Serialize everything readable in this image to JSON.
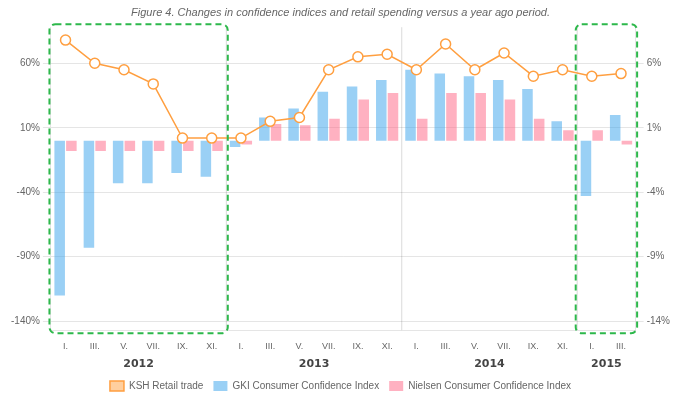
{
  "chart_data": {
    "type": "bar",
    "title": "Figure 4. Changes in confidence indices and retail spending versus a year ago period.",
    "categories": [
      "I.",
      "III.",
      "V.",
      "VII.",
      "IX.",
      "XI.",
      "I.",
      "III.",
      "V.",
      "VII.",
      "IX.",
      "XI.",
      "I.",
      "III.",
      "V.",
      "VII.",
      "IX.",
      "XI.",
      "I.",
      "III."
    ],
    "series": [
      {
        "name": "GKI Consumer Confidence Index",
        "type": "bar",
        "values": [
          -120,
          -83,
          -33,
          -33,
          -25,
          -28,
          -5,
          18,
          25,
          38,
          42,
          47,
          55,
          52,
          50,
          47,
          40,
          15,
          -43,
          20
        ]
      },
      {
        "name": "Nielsen Consumer Confidence Index",
        "type": "bar",
        "values": [
          -8,
          -8,
          -8,
          -8,
          -8,
          -8,
          -3,
          13,
          12,
          17,
          32,
          37,
          17,
          37,
          37,
          32,
          17,
          8,
          8,
          -3
        ]
      },
      {
        "name": "KSH Retail trade",
        "type": "line",
        "axis": "y2",
        "marker": "circle",
        "line_style": "solid",
        "values": [
          7.8,
          6.0,
          5.5,
          4.4,
          0.2,
          0.2,
          0.2,
          1.5,
          1.8,
          5.5,
          6.5,
          6.7,
          5.5,
          7.5,
          5.5,
          6.8,
          5.0,
          5.5,
          5.0,
          5.2
        ]
      }
    ],
    "ylim": [
      -147,
      88
    ],
    "yticks": [
      {
        "value": -140,
        "label": "-140%"
      },
      {
        "value": -90,
        "label": "-90%"
      },
      {
        "value": -40,
        "label": "-40%"
      },
      {
        "value": 10,
        "label": "10%"
      },
      {
        "value": 60,
        "label": "60%"
      }
    ],
    "y2lim": [
      -14.7,
      8.8
    ],
    "y2ticks": [
      {
        "value": -14,
        "label": "-14%"
      },
      {
        "value": -9,
        "label": "-9%"
      },
      {
        "value": -4,
        "label": "-4%"
      },
      {
        "value": 1,
        "label": "1%"
      },
      {
        "value": 6,
        "label": "6%"
      }
    ],
    "grid": true,
    "legend": "bottom",
    "annotations": [
      {
        "text": "2012",
        "x": 2.5
      },
      {
        "text": "2013",
        "x": 8.5
      },
      {
        "text": "2014",
        "x": 14.5
      },
      {
        "text": "2015",
        "x": 18.5
      }
    ],
    "dividers": [
      5.5,
      11.5,
      17.5
    ],
    "boxes": [
      {
        "from": -0.55,
        "to": 5.55,
        "color": "#2db84b",
        "line_style": "dashed"
      },
      {
        "from": 17.45,
        "to": 19.55,
        "color": "#2db84b",
        "line_style": "dashed"
      }
    ]
  }
}
